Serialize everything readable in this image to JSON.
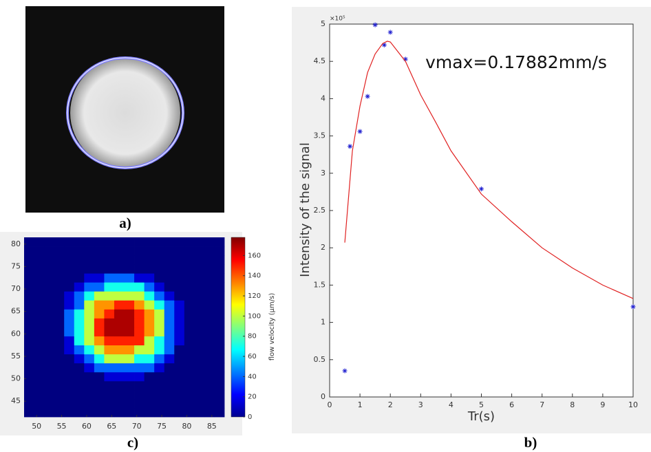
{
  "image_panel": {
    "panel_label": "a)"
  },
  "chart_data": [
    {
      "type": "scatter",
      "panel_label": "b)",
      "xlabel": "Tr(s)",
      "ylabel": "Intensity of the signal",
      "y_multiplier": "×10⁵",
      "annotation": "vmax=0.17882mm/s",
      "xlim": [
        0,
        10
      ],
      "ylim": [
        0,
        5
      ],
      "xticks": [
        0,
        1,
        2,
        3,
        4,
        5,
        6,
        7,
        8,
        9,
        10
      ],
      "yticks": [
        0,
        0.5,
        1,
        1.5,
        2,
        2.5,
        3,
        3.5,
        4,
        4.5,
        5
      ],
      "series": [
        {
          "type": "scatter",
          "color": "#2020d0",
          "x": [
            0.5,
            0.67,
            1.0,
            1.25,
            1.5,
            1.8,
            2.0,
            2.5,
            5,
            10
          ],
          "values": [
            0.35,
            3.36,
            3.56,
            4.03,
            4.99,
            4.72,
            4.89,
            4.53,
            2.79,
            1.21
          ]
        },
        {
          "type": "line",
          "color": "#e02020",
          "x": [
            0.5,
            0.75,
            1.0,
            1.25,
            1.5,
            1.75,
            1.9,
            2.0,
            2.5,
            3,
            3.5,
            4,
            5,
            6,
            7,
            8,
            9,
            10
          ],
          "values": [
            2.07,
            3.3,
            3.9,
            4.35,
            4.6,
            4.74,
            4.77,
            4.76,
            4.5,
            4.05,
            3.68,
            3.3,
            2.72,
            2.35,
            2.0,
            1.73,
            1.5,
            1.32
          ]
        }
      ]
    },
    {
      "type": "heatmap",
      "panel_label": "c)",
      "colorbar_label": "flow velocity (μm/s)",
      "xlim": [
        47.5,
        87.5
      ],
      "ylim": [
        41.5,
        81.5
      ],
      "clim": [
        0,
        178
      ],
      "xticks": [
        50,
        55,
        60,
        65,
        70,
        75,
        80,
        85
      ],
      "yticks": [
        45,
        50,
        55,
        60,
        65,
        70,
        75,
        80
      ],
      "cticks": [
        0,
        20,
        40,
        60,
        80,
        100,
        120,
        140,
        160
      ],
      "x": [
        48.5,
        50.5,
        52.5,
        54.5,
        56.5,
        58.5,
        60.5,
        62.5,
        64.5,
        66.5,
        68.5,
        70.5,
        72.5,
        74.5,
        76.5,
        78.5,
        80.5,
        82.5,
        84.5,
        86.5
      ],
      "y": [
        42.5,
        44.5,
        46.5,
        48.5,
        50.5,
        52.5,
        54.5,
        56.5,
        58.5,
        60.5,
        62.5,
        64.5,
        66.5,
        68.5,
        70.5,
        72.5,
        74.5,
        76.5,
        78.5,
        80.5
      ],
      "z": [
        [
          0,
          0,
          0,
          0,
          0,
          0,
          0,
          0,
          0,
          0,
          0,
          0,
          0,
          0,
          0,
          0,
          0,
          0,
          0,
          0
        ],
        [
          0,
          0,
          0,
          0,
          0,
          0,
          0,
          0,
          0,
          0,
          0,
          0,
          0,
          0,
          0,
          0,
          0,
          0,
          0,
          0
        ],
        [
          0,
          0,
          0,
          0,
          0,
          0,
          0,
          0,
          0,
          0,
          0,
          0,
          0,
          0,
          0,
          0,
          0,
          0,
          0,
          0
        ],
        [
          0,
          0,
          0,
          0,
          0,
          0,
          0,
          0,
          0,
          0,
          0,
          0,
          0,
          0,
          0,
          0,
          0,
          0,
          0,
          0
        ],
        [
          0,
          0,
          0,
          0,
          0,
          0,
          0,
          0,
          15,
          15,
          15,
          15,
          0,
          0,
          0,
          0,
          0,
          0,
          0,
          0
        ],
        [
          0,
          0,
          0,
          0,
          0,
          0,
          15,
          40,
          40,
          40,
          40,
          40,
          40,
          15,
          0,
          0,
          0,
          0,
          0,
          0
        ],
        [
          0,
          0,
          0,
          0,
          0,
          15,
          40,
          70,
          100,
          100,
          100,
          70,
          70,
          40,
          15,
          0,
          0,
          0,
          0,
          0
        ],
        [
          0,
          0,
          0,
          0,
          15,
          40,
          70,
          100,
          130,
          130,
          130,
          100,
          100,
          70,
          40,
          0,
          0,
          0,
          0,
          0
        ],
        [
          0,
          0,
          0,
          0,
          15,
          70,
          100,
          130,
          150,
          150,
          150,
          150,
          100,
          70,
          40,
          15,
          0,
          0,
          0,
          0
        ],
        [
          0,
          0,
          0,
          0,
          40,
          70,
          100,
          150,
          170,
          170,
          170,
          150,
          130,
          100,
          40,
          15,
          0,
          0,
          0,
          0
        ],
        [
          0,
          0,
          0,
          0,
          40,
          70,
          100,
          150,
          170,
          170,
          170,
          150,
          130,
          100,
          40,
          15,
          0,
          0,
          0,
          0
        ],
        [
          0,
          0,
          0,
          0,
          40,
          70,
          100,
          130,
          150,
          170,
          170,
          150,
          130,
          100,
          40,
          15,
          0,
          0,
          0,
          0
        ],
        [
          0,
          0,
          0,
          0,
          15,
          40,
          100,
          130,
          130,
          150,
          150,
          130,
          100,
          70,
          40,
          15,
          0,
          0,
          0,
          0
        ],
        [
          0,
          0,
          0,
          0,
          15,
          40,
          70,
          100,
          100,
          100,
          100,
          100,
          70,
          40,
          15,
          0,
          0,
          0,
          0,
          0
        ],
        [
          0,
          0,
          0,
          0,
          0,
          15,
          40,
          40,
          70,
          70,
          70,
          70,
          40,
          15,
          0,
          0,
          0,
          0,
          0,
          0
        ],
        [
          0,
          0,
          0,
          0,
          0,
          0,
          15,
          15,
          40,
          40,
          40,
          15,
          15,
          0,
          0,
          0,
          0,
          0,
          0,
          0
        ],
        [
          0,
          0,
          0,
          0,
          0,
          0,
          0,
          0,
          0,
          0,
          0,
          0,
          0,
          0,
          0,
          0,
          0,
          0,
          0,
          0
        ],
        [
          0,
          0,
          0,
          0,
          0,
          0,
          0,
          0,
          0,
          0,
          0,
          0,
          0,
          0,
          0,
          0,
          0,
          0,
          0,
          0
        ],
        [
          0,
          0,
          0,
          0,
          0,
          0,
          0,
          0,
          0,
          0,
          0,
          0,
          0,
          0,
          0,
          0,
          0,
          0,
          0,
          0
        ],
        [
          0,
          0,
          0,
          0,
          0,
          0,
          0,
          0,
          0,
          0,
          0,
          0,
          0,
          0,
          0,
          0,
          0,
          0,
          0,
          0
        ]
      ]
    }
  ]
}
